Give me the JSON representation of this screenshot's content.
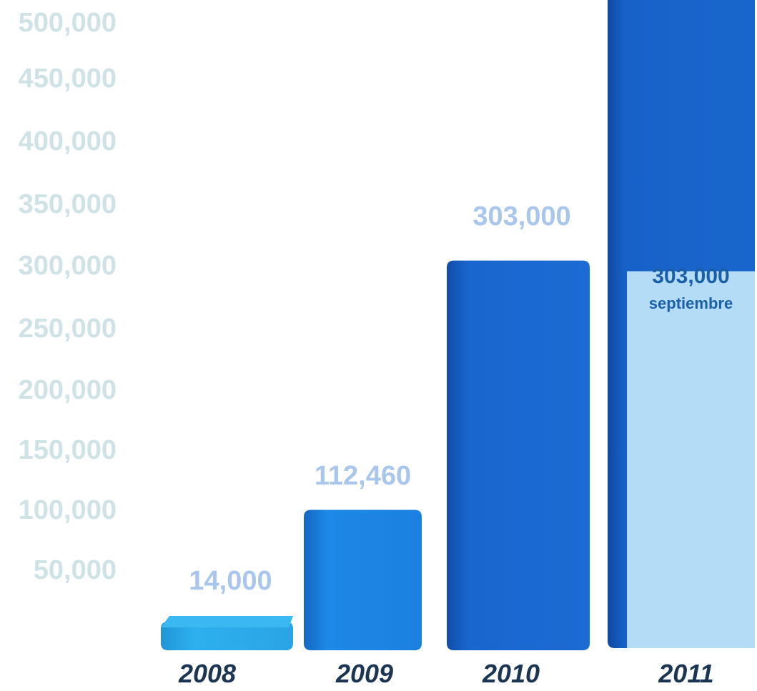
{
  "chart_data": {
    "type": "bar",
    "title": "",
    "xlabel": "",
    "ylabel": "",
    "ylim": [
      0,
      500000
    ],
    "grid": false,
    "legend": "none",
    "y_ticks": [
      "50,000",
      "100,000",
      "150,000",
      "200,000",
      "250,000",
      "300,000",
      "350,000",
      "400,000",
      "450,000",
      "500,000"
    ],
    "y_tick_values": [
      50000,
      100000,
      150000,
      200000,
      250000,
      300000,
      350000,
      400000,
      450000,
      500000
    ],
    "categories": [
      "2008",
      "2009",
      "2010",
      "2011"
    ],
    "values": [
      14000,
      112460,
      303000,
      500000
    ],
    "value_labels": [
      "14,000",
      "112,460",
      "303,000",
      ""
    ],
    "inner_segment": {
      "category": "2011",
      "value": 303000,
      "label": "303,000",
      "note": "septiembre"
    },
    "colors": {
      "ytick_text": "#cfe3e6",
      "xtick_text": "#1c3553",
      "value_label_text": "#a9c6ec",
      "bar_2008": "#2aa8e8",
      "bar_2009": "#1b7fdf",
      "bar_2010": "#1a66cf",
      "bar_2011": "#1762c9",
      "inner_segment": "#b4dcf6",
      "inner_text": "#1b5fa8"
    }
  }
}
